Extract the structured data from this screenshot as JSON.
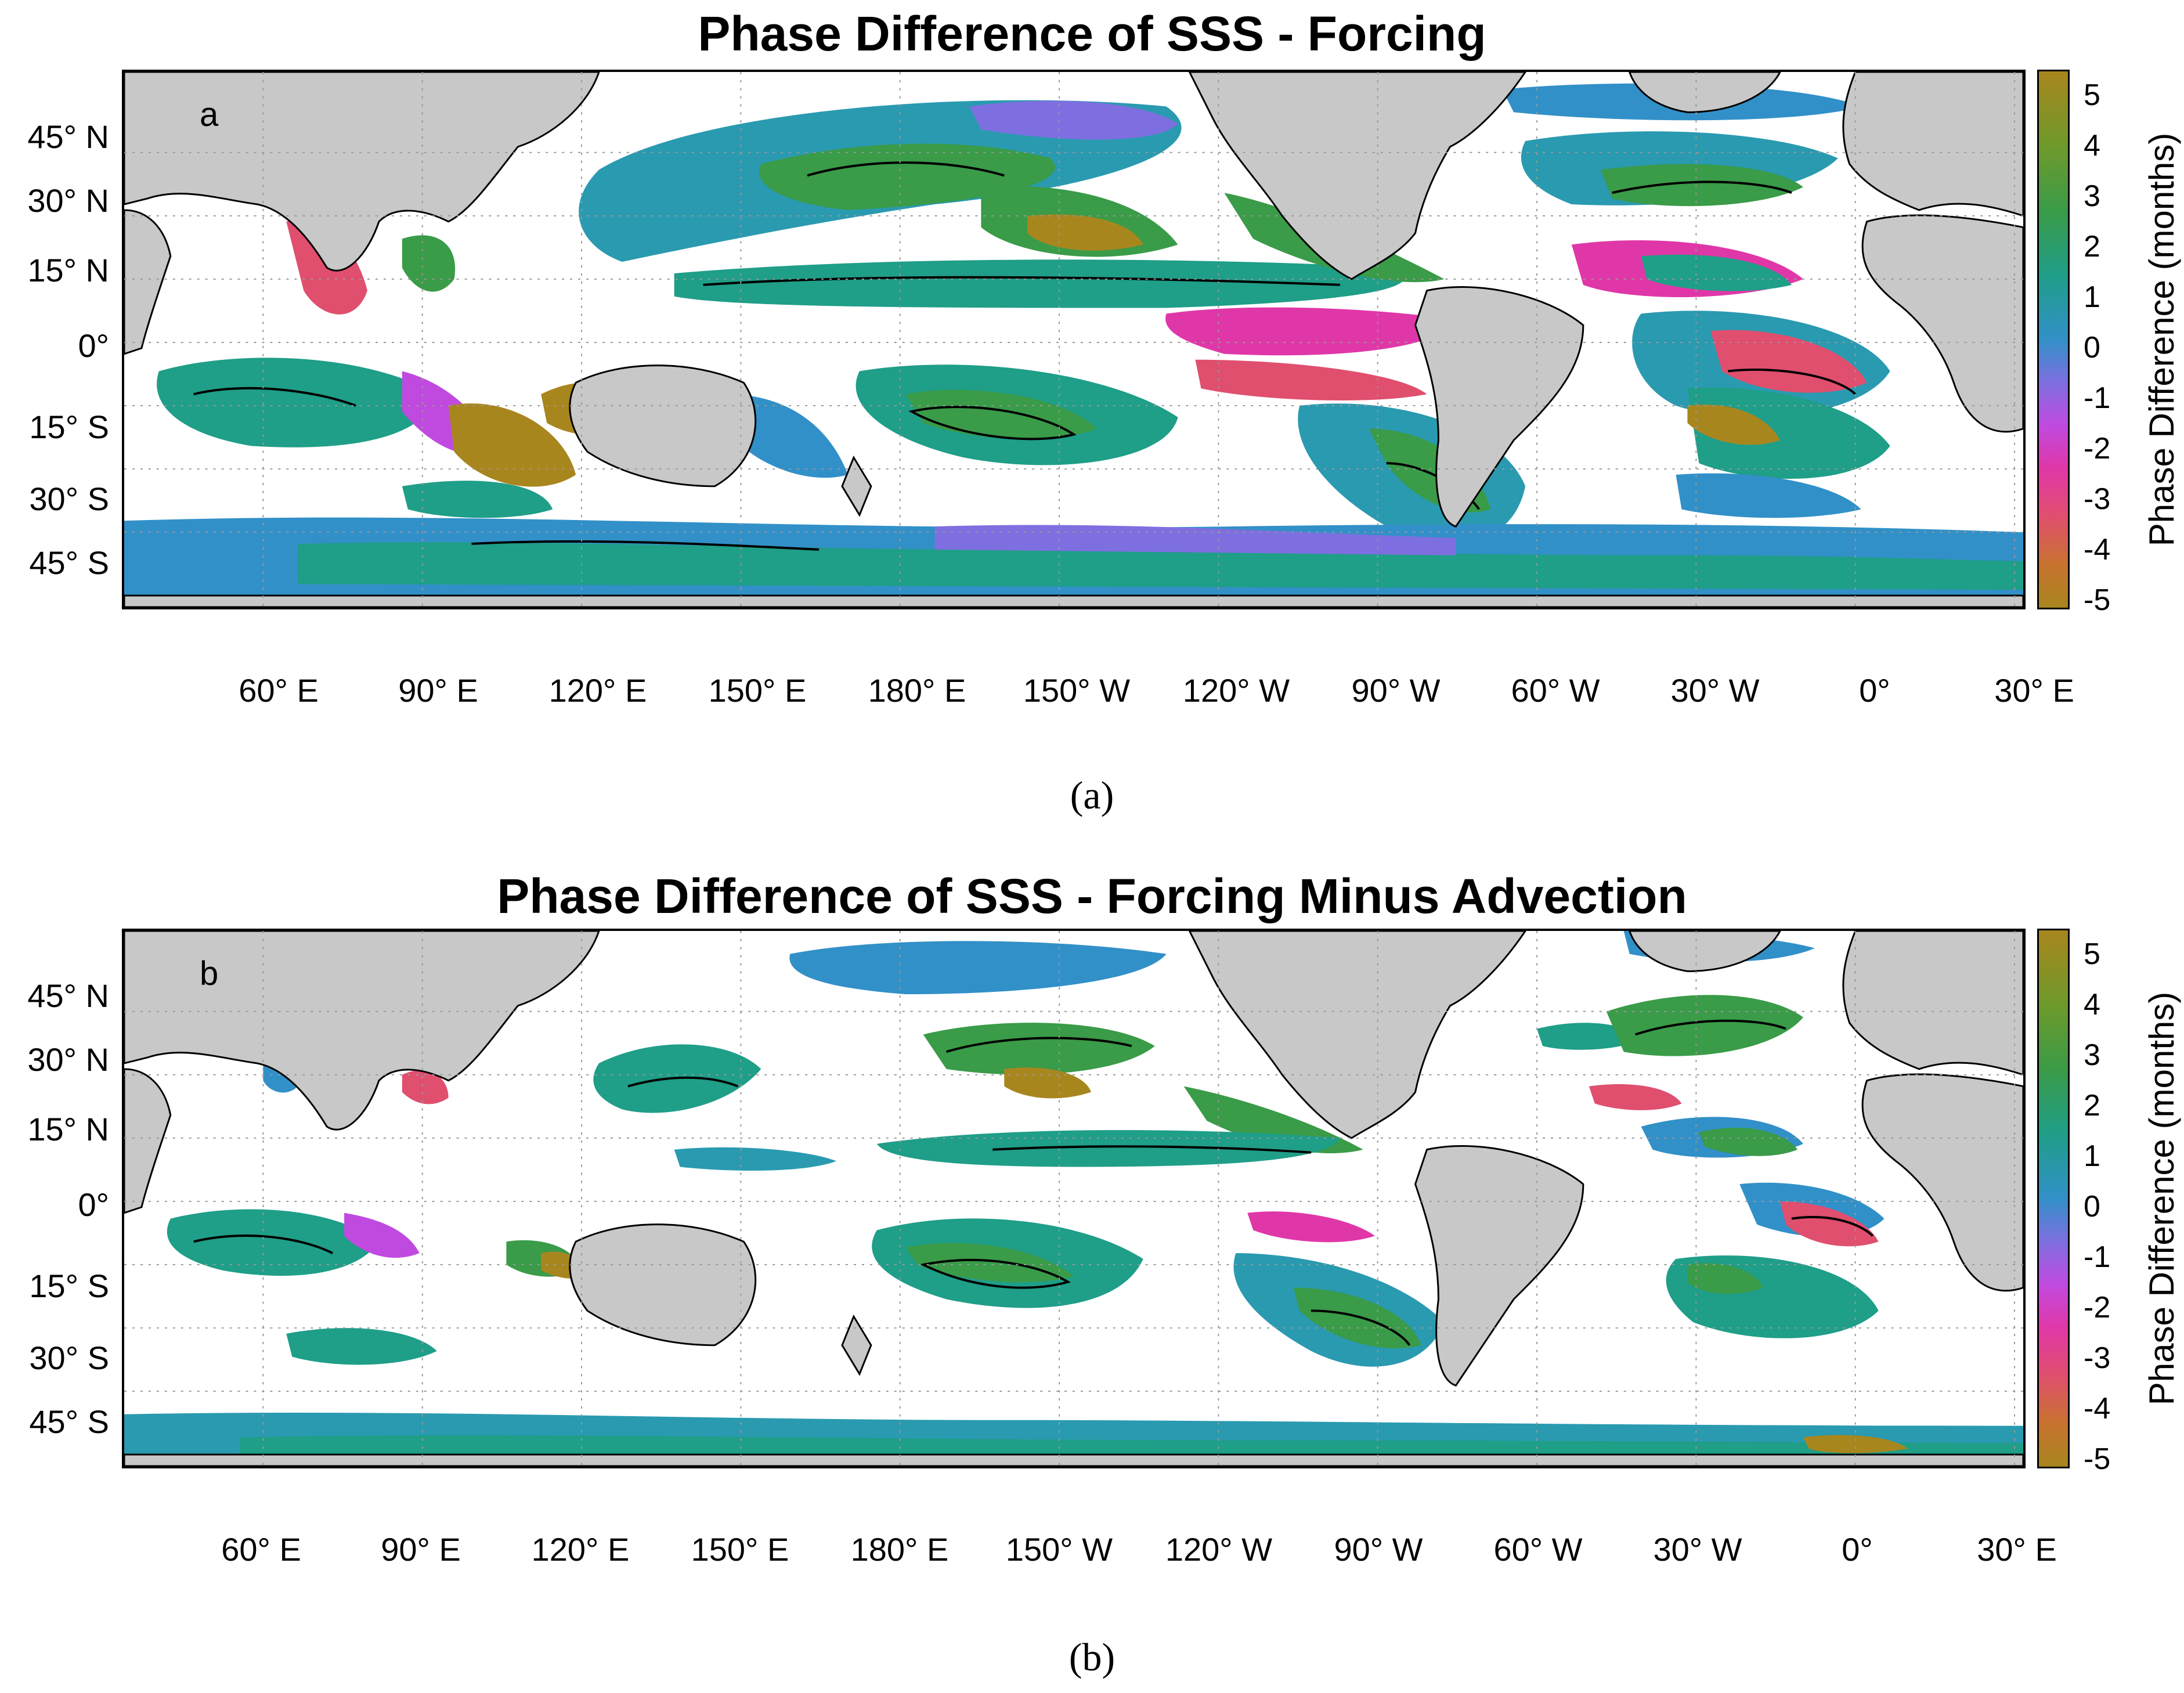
{
  "colorbar": {
    "label": "Phase Difference (months)",
    "ticks": [
      "5",
      "4",
      "3",
      "2",
      "1",
      "0",
      "-1",
      "-2",
      "-3",
      "-4",
      "-5"
    ],
    "colors": [
      "#a8861e",
      "#3a9b48",
      "#1f9e88",
      "#3290c8",
      "#7e6fe0",
      "#c04ae0",
      "#e037a8",
      "#c8732f"
    ]
  },
  "lat_labels": [
    "45° N",
    "30° N",
    "15° N",
    "0°",
    "15° S",
    "30° S",
    "45° S"
  ],
  "lon_labels": [
    "60° E",
    "90° E",
    "120° E",
    "150° E",
    "180° E",
    "150° W",
    "120° W",
    "90° W",
    "60° W",
    "30° W",
    "0°",
    "30° E"
  ],
  "panels": [
    {
      "id": "a",
      "title": "Phase Difference of SSS - Forcing",
      "panel_letter": "a",
      "caption": "(a)"
    },
    {
      "id": "b",
      "title": "Phase Difference of SSS - Forcing Minus Advection",
      "panel_letter": "b",
      "caption": "(b)"
    }
  ]
}
